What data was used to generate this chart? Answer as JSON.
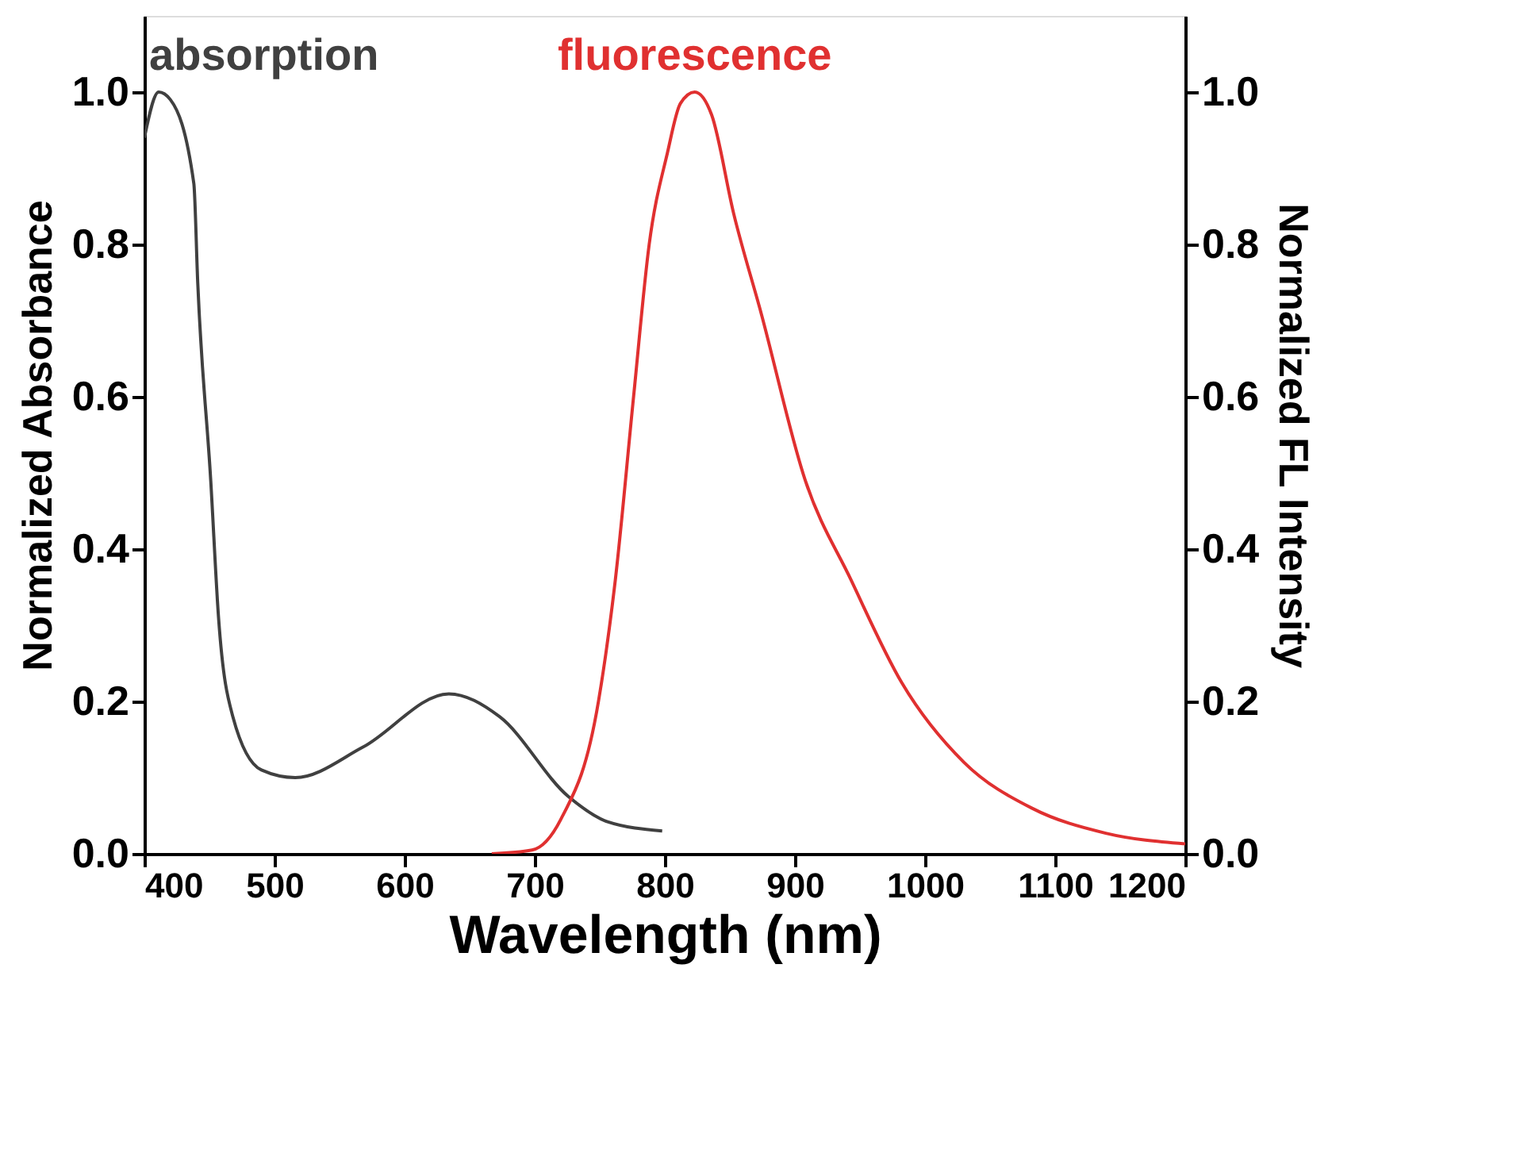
{
  "chart_data": {
    "type": "line",
    "xlabel": "Wavelength (nm)",
    "ylabel": "Normalized Absorbance",
    "y2label": "Normalized FL Intensity",
    "xlim": [
      400,
      1200
    ],
    "xticks": [
      400,
      500,
      600,
      700,
      800,
      900,
      1000,
      1100,
      1200
    ],
    "ylim": [
      0,
      1.1
    ],
    "yticks": [
      {
        "value": 0,
        "label": "0.0"
      },
      {
        "value": 0.2,
        "label": "0.2"
      },
      {
        "value": 0.4,
        "label": "0.4"
      },
      {
        "value": 0.6,
        "label": "0.6"
      },
      {
        "value": 0.8,
        "label": "0.8"
      },
      {
        "value": 1,
        "label": "1.0"
      }
    ],
    "y2lim": [
      0,
      1.1
    ],
    "y2ticks": [
      {
        "value": 0,
        "label": "0.0"
      },
      {
        "value": 0.2,
        "label": "0.2"
      },
      {
        "value": 0.4,
        "label": "0.4"
      },
      {
        "value": 0.6,
        "label": "0.6"
      },
      {
        "value": 0.8,
        "label": "0.8"
      },
      {
        "value": 1,
        "label": "1.0"
      }
    ],
    "grid": false,
    "marker": "none",
    "line_style": "solid",
    "series": [
      {
        "name": "absorption",
        "color": "#404040",
        "x": [
          400,
          411,
          420,
          438,
          441,
          451,
          457,
          468,
          490,
          516,
          568,
          634,
          673,
          726,
          756,
          798
        ],
        "values": [
          0.94,
          1.0,
          0.99,
          0.88,
          0.75,
          0.49,
          0.31,
          0.18,
          0.11,
          0.1,
          0.14,
          0.21,
          0.18,
          0.075,
          0.042,
          0.03
        ]
      },
      {
        "name": "fluorescence",
        "color": "#e03030",
        "axis": "y2",
        "x": [
          667,
          698,
          720,
          749,
          762,
          776,
          788,
          802,
          812,
          823,
          836,
          853,
          874,
          908,
          943,
          982,
          1030,
          1082,
          1139,
          1200
        ],
        "values": [
          0,
          0.005,
          0.045,
          0.2,
          0.36,
          0.6,
          0.8,
          0.92,
          0.985,
          1.0,
          0.97,
          0.84,
          0.71,
          0.49,
          0.36,
          0.225,
          0.12,
          0.06,
          0.027,
          0.013
        ]
      }
    ]
  }
}
